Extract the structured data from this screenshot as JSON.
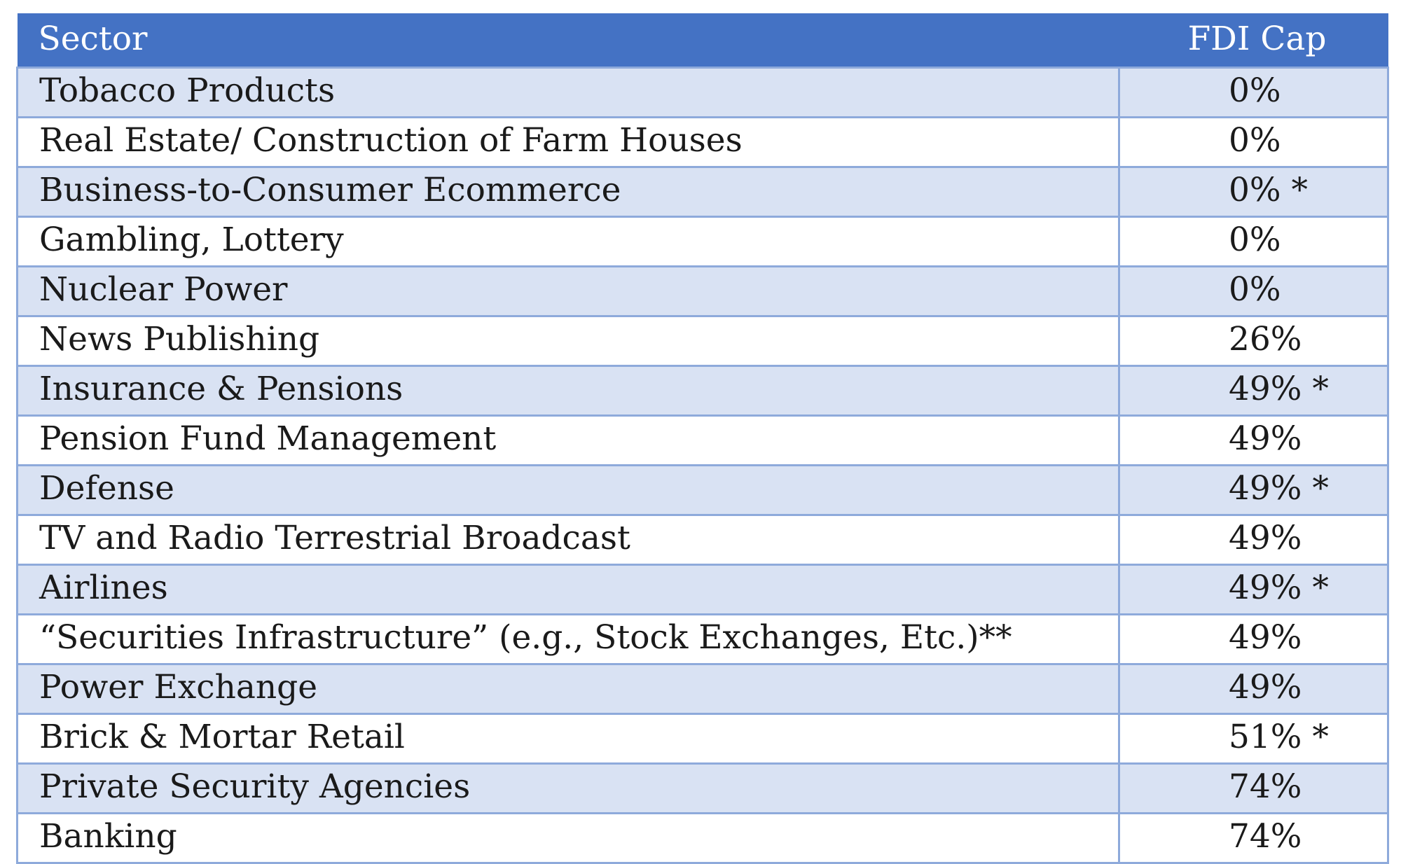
{
  "table": {
    "headers": {
      "sector": "Sector",
      "cap": "FDI Cap"
    },
    "rows": [
      {
        "sector": "Tobacco Products",
        "cap": "0%"
      },
      {
        "sector": "Real Estate/ Construction of Farm Houses",
        "cap": "0%"
      },
      {
        "sector": "Business-to-Consumer Ecommerce",
        "cap": "0% *"
      },
      {
        "sector": "Gambling, Lottery",
        "cap": "0%"
      },
      {
        "sector": "Nuclear Power",
        "cap": "0%"
      },
      {
        "sector": "News Publishing",
        "cap": "26%"
      },
      {
        "sector": "Insurance & Pensions",
        "cap": "49% *"
      },
      {
        "sector": "Pension Fund Management",
        "cap": "49%"
      },
      {
        "sector": "Defense",
        "cap": "49% *"
      },
      {
        "sector": "TV and Radio Terrestrial Broadcast",
        "cap": "49%"
      },
      {
        "sector": "Airlines",
        "cap": "49% *"
      },
      {
        "sector": "“Securities Infrastructure” (e.g., Stock Exchanges, Etc.)**",
        "cap": "49%"
      },
      {
        "sector": "Power Exchange",
        "cap": "49%"
      },
      {
        "sector": "Brick & Mortar Retail",
        "cap": "51% *"
      },
      {
        "sector": "Private Security Agencies",
        "cap": "74%"
      },
      {
        "sector": "Banking",
        "cap": "74%"
      }
    ]
  },
  "colors": {
    "header_bg": "#4472c4",
    "header_text": "#ffffff",
    "band_row_bg": "#d9e2f3",
    "plain_row_bg": "#ffffff",
    "grid_line": "#8eaadb"
  }
}
